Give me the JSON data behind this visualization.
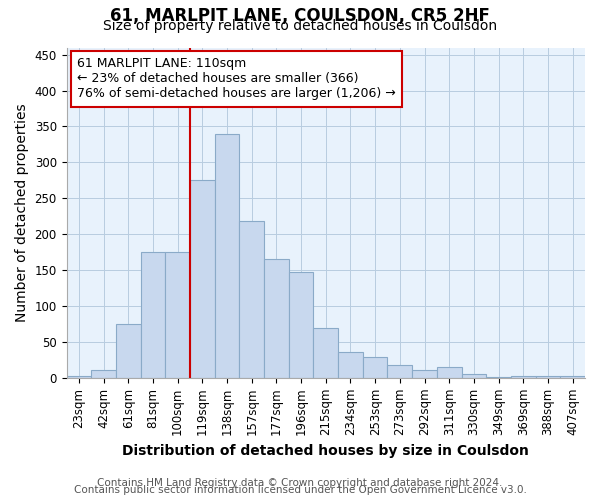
{
  "title": "61, MARLPIT LANE, COULSDON, CR5 2HF",
  "subtitle": "Size of property relative to detached houses in Coulsdon",
  "xlabel": "Distribution of detached houses by size in Coulsdon",
  "ylabel": "Number of detached properties",
  "bin_labels": [
    "23sqm",
    "42sqm",
    "61sqm",
    "81sqm",
    "100sqm",
    "119sqm",
    "138sqm",
    "157sqm",
    "177sqm",
    "196sqm",
    "215sqm",
    "234sqm",
    "253sqm",
    "273sqm",
    "292sqm",
    "311sqm",
    "330sqm",
    "349sqm",
    "369sqm",
    "388sqm",
    "407sqm"
  ],
  "bar_heights": [
    3,
    11,
    75,
    175,
    175,
    275,
    340,
    218,
    165,
    147,
    70,
    36,
    29,
    18,
    11,
    15,
    6,
    1,
    3,
    3,
    3
  ],
  "bar_color": "#c8d8ee",
  "bar_edge_color": "#8aaac8",
  "vline_x": 5,
  "vline_color": "#cc0000",
  "annotation_text": "61 MARLPIT LANE: 110sqm\n← 23% of detached houses are smaller (366)\n76% of semi-detached houses are larger (1,206) →",
  "annotation_box_color": "#ffffff",
  "annotation_box_edge": "#cc0000",
  "ylim": [
    0,
    460
  ],
  "yticks": [
    0,
    50,
    100,
    150,
    200,
    250,
    300,
    350,
    400,
    450
  ],
  "footnote1": "Contains HM Land Registry data © Crown copyright and database right 2024.",
  "footnote2": "Contains public sector information licensed under the Open Government Licence v3.0.",
  "bg_color": "#ffffff",
  "plot_bg_color": "#e8f2fc",
  "grid_color": "#b8cce0",
  "title_fontsize": 12,
  "subtitle_fontsize": 10,
  "axis_label_fontsize": 10,
  "tick_fontsize": 8.5,
  "annotation_fontsize": 9,
  "footnote_fontsize": 7.5
}
